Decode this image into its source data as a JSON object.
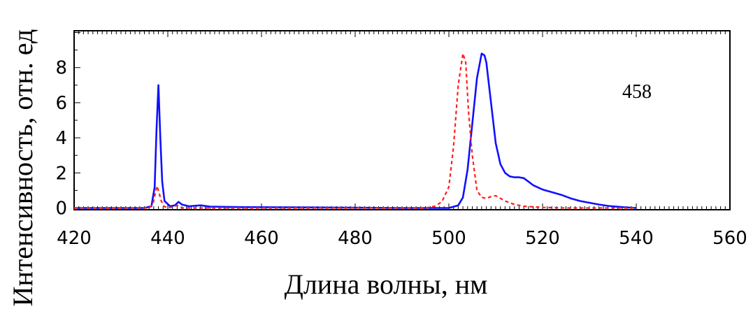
{
  "chart_data": {
    "type": "line",
    "title": "",
    "xlabel": "Длина волны, нм",
    "ylabel": "Интенсивность, отн. ед",
    "xlim": [
      420,
      560
    ],
    "ylim": [
      -0.1,
      10.1
    ],
    "x_ticks": [
      "420",
      "440",
      "460",
      "480",
      "500",
      "520",
      "540",
      "560"
    ],
    "y_ticks": [
      "0",
      "2",
      "4",
      "6",
      "8"
    ],
    "annotation": "458",
    "grid": false,
    "colors": {
      "series_blue": "#1010ff",
      "series_red": "#ff2020"
    },
    "series": [
      {
        "style": "solid",
        "color": "#1010ff",
        "points": [
          [
            420,
            0.0
          ],
          [
            435,
            0.0
          ],
          [
            436.5,
            0.1
          ],
          [
            437.2,
            1.2
          ],
          [
            437.6,
            4.5
          ],
          [
            438.0,
            7.0
          ],
          [
            438.4,
            4.0
          ],
          [
            438.8,
            1.5
          ],
          [
            439.3,
            0.4
          ],
          [
            440.5,
            0.1
          ],
          [
            441.5,
            0.15
          ],
          [
            442.3,
            0.35
          ],
          [
            443.0,
            0.2
          ],
          [
            444.5,
            0.1
          ],
          [
            447.0,
            0.15
          ],
          [
            449.0,
            0.08
          ],
          [
            455.0,
            0.05
          ],
          [
            470.0,
            0.03
          ],
          [
            490.0,
            0.0
          ],
          [
            500.0,
            0.0
          ],
          [
            502.0,
            0.15
          ],
          [
            503.0,
            0.6
          ],
          [
            504.0,
            2.2
          ],
          [
            505.0,
            4.8
          ],
          [
            506.0,
            7.4
          ],
          [
            507.0,
            8.8
          ],
          [
            507.6,
            8.7
          ],
          [
            508.0,
            8.3
          ],
          [
            509.0,
            6.0
          ],
          [
            510.0,
            3.7
          ],
          [
            511.0,
            2.5
          ],
          [
            512.0,
            2.0
          ],
          [
            513.0,
            1.8
          ],
          [
            514.0,
            1.75
          ],
          [
            515.0,
            1.75
          ],
          [
            516.0,
            1.7
          ],
          [
            517.0,
            1.5
          ],
          [
            518.0,
            1.3
          ],
          [
            520.0,
            1.05
          ],
          [
            522.0,
            0.9
          ],
          [
            524.0,
            0.75
          ],
          [
            526.0,
            0.55
          ],
          [
            528.0,
            0.4
          ],
          [
            530.0,
            0.3
          ],
          [
            532.0,
            0.2
          ],
          [
            534.0,
            0.12
          ],
          [
            536.0,
            0.07
          ],
          [
            538.0,
            0.03
          ],
          [
            540.0,
            0.0
          ]
        ]
      },
      {
        "style": "dashed",
        "color": "#ff2020",
        "points": [
          [
            420,
            0.0
          ],
          [
            436.0,
            0.0
          ],
          [
            436.8,
            0.2
          ],
          [
            437.3,
            0.8
          ],
          [
            437.7,
            1.25
          ],
          [
            438.1,
            0.9
          ],
          [
            438.6,
            0.4
          ],
          [
            439.2,
            0.1
          ],
          [
            440.0,
            0.0
          ],
          [
            441.5,
            0.1
          ],
          [
            442.0,
            0.15
          ],
          [
            443.0,
            0.0
          ],
          [
            495.0,
            0.0
          ],
          [
            497.0,
            0.1
          ],
          [
            498.5,
            0.35
          ],
          [
            500.0,
            1.2
          ],
          [
            501.0,
            3.5
          ],
          [
            502.0,
            7.0
          ],
          [
            503.0,
            8.8
          ],
          [
            503.6,
            8.3
          ],
          [
            504.2,
            5.5
          ],
          [
            505.0,
            3.0
          ],
          [
            506.0,
            1.0
          ],
          [
            507.0,
            0.6
          ],
          [
            508.0,
            0.55
          ],
          [
            509.0,
            0.65
          ],
          [
            510.0,
            0.7
          ],
          [
            511.0,
            0.55
          ],
          [
            512.0,
            0.4
          ],
          [
            514.0,
            0.2
          ],
          [
            516.0,
            0.1
          ],
          [
            520.0,
            0.03
          ],
          [
            525.0,
            0.0
          ],
          [
            540.0,
            0.0
          ]
        ]
      }
    ]
  }
}
